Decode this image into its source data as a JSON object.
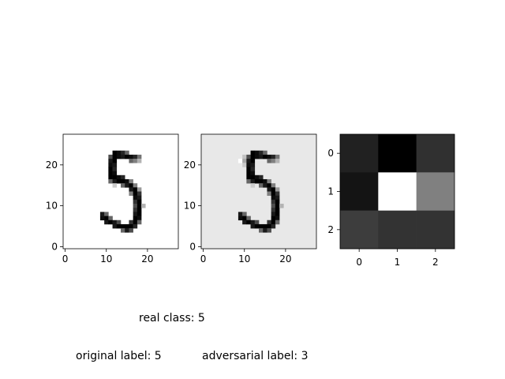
{
  "chart_data": [
    {
      "type": "heatmap",
      "name": "original-image",
      "colormap": "gray_r",
      "shape": [
        28,
        28
      ],
      "vmin": 0,
      "vmax": 1,
      "xticks": [
        0,
        10,
        20
      ],
      "yticks": [
        0,
        10,
        20
      ],
      "xlim": [
        -0.5,
        27.5
      ],
      "ylim": [
        27.5,
        -0.5
      ],
      "background": 0.0,
      "pixels": [
        [
          4,
          12,
          1.0
        ],
        [
          4,
          13,
          0.95
        ],
        [
          4,
          14,
          0.85
        ],
        [
          4,
          15,
          0.6
        ],
        [
          5,
          11,
          0.7
        ],
        [
          5,
          12,
          1.0
        ],
        [
          5,
          13,
          0.95
        ],
        [
          5,
          14,
          0.9
        ],
        [
          5,
          15,
          1.0
        ],
        [
          5,
          16,
          0.95
        ],
        [
          5,
          17,
          0.85
        ],
        [
          5,
          18,
          0.55
        ],
        [
          6,
          11,
          0.9
        ],
        [
          6,
          12,
          1.0
        ],
        [
          6,
          16,
          0.6
        ],
        [
          6,
          17,
          0.5
        ],
        [
          6,
          18,
          0.3
        ],
        [
          7,
          11,
          0.95
        ],
        [
          7,
          12,
          0.9
        ],
        [
          8,
          11,
          1.0
        ],
        [
          8,
          12,
          0.85
        ],
        [
          9,
          11,
          1.0
        ],
        [
          9,
          12,
          0.95
        ],
        [
          10,
          11,
          1.0
        ],
        [
          10,
          12,
          1.0
        ],
        [
          10,
          13,
          0.95
        ],
        [
          10,
          14,
          0.85
        ],
        [
          11,
          11,
          0.6
        ],
        [
          11,
          12,
          0.9
        ],
        [
          11,
          13,
          1.0
        ],
        [
          11,
          14,
          1.0
        ],
        [
          11,
          15,
          0.95
        ],
        [
          11,
          16,
          0.5
        ],
        [
          12,
          12,
          0.2
        ],
        [
          12,
          14,
          0.6
        ],
        [
          12,
          15,
          0.9
        ],
        [
          12,
          16,
          1.0
        ],
        [
          12,
          17,
          0.5
        ],
        [
          13,
          16,
          0.9
        ],
        [
          13,
          17,
          1.0
        ],
        [
          13,
          18,
          0.4
        ],
        [
          14,
          16,
          0.5
        ],
        [
          14,
          17,
          1.0
        ],
        [
          14,
          18,
          0.8
        ],
        [
          15,
          17,
          0.95
        ],
        [
          15,
          18,
          0.9
        ],
        [
          16,
          17,
          0.8
        ],
        [
          16,
          18,
          1.0
        ],
        [
          17,
          17,
          0.7
        ],
        [
          17,
          18,
          1.0
        ],
        [
          17,
          19,
          0.3
        ],
        [
          18,
          17,
          0.8
        ],
        [
          18,
          18,
          1.0
        ],
        [
          19,
          9,
          0.9
        ],
        [
          19,
          10,
          0.6
        ],
        [
          19,
          17,
          0.9
        ],
        [
          19,
          18,
          1.0
        ],
        [
          20,
          9,
          0.95
        ],
        [
          20,
          10,
          1.0
        ],
        [
          20,
          11,
          0.6
        ],
        [
          20,
          17,
          1.0
        ],
        [
          20,
          18,
          0.95
        ],
        [
          21,
          10,
          0.9
        ],
        [
          21,
          11,
          1.0
        ],
        [
          21,
          12,
          0.9
        ],
        [
          21,
          13,
          0.7
        ],
        [
          21,
          16,
          0.8
        ],
        [
          21,
          17,
          1.0
        ],
        [
          21,
          18,
          0.6
        ],
        [
          22,
          12,
          0.9
        ],
        [
          22,
          13,
          1.0
        ],
        [
          22,
          14,
          1.0
        ],
        [
          22,
          15,
          1.0
        ],
        [
          22,
          16,
          1.0
        ],
        [
          22,
          17,
          0.85
        ],
        [
          23,
          14,
          0.6
        ],
        [
          23,
          15,
          0.9
        ],
        [
          23,
          16,
          0.7
        ]
      ]
    },
    {
      "type": "heatmap",
      "name": "adversarial-image",
      "colormap": "gray_r",
      "shape": [
        28,
        28
      ],
      "xticks": [
        0,
        10,
        20
      ],
      "yticks": [
        0,
        10,
        20
      ],
      "xlim": [
        -0.5,
        27.5
      ],
      "ylim": [
        27.5,
        -0.5
      ],
      "background": 0.09,
      "perturbation": [
        [
          6,
          9,
          -0.09
        ],
        [
          6,
          10,
          0.25
        ],
        [
          5,
          10,
          0.15
        ],
        [
          7,
          10,
          0.12
        ]
      ],
      "pixels_same_as": "original-image"
    },
    {
      "type": "heatmap",
      "name": "kernel",
      "colormap": "gray",
      "shape": [
        3,
        3
      ],
      "xticks": [
        0,
        1,
        2
      ],
      "yticks": [
        0,
        1,
        2
      ],
      "values": [
        [
          0.13,
          0.0,
          0.19
        ],
        [
          0.08,
          1.0,
          0.5
        ],
        [
          0.24,
          0.2,
          0.2
        ]
      ]
    }
  ],
  "captions": {
    "real_class": "real class: 5",
    "original_label": "original label: 5",
    "adversarial_label": "adversarial label: 3"
  }
}
